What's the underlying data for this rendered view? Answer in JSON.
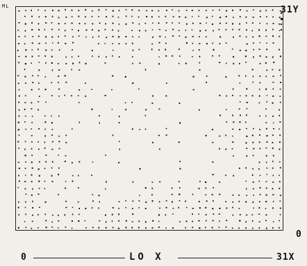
{
  "chart_data": {
    "type": "scatter",
    "title": "",
    "xlabel": "LO X",
    "ylabel": "",
    "x_tick_labels": {
      "min": "0",
      "max": "31X"
    },
    "y_tick_labels": {
      "min": "0",
      "max": "31Y"
    },
    "corner_mark": "ML",
    "xlim": [
      0,
      31
    ],
    "ylim": [
      0,
      31
    ],
    "grid": false,
    "marker_color": "#151515",
    "background_color": "#f0efe9"
  }
}
